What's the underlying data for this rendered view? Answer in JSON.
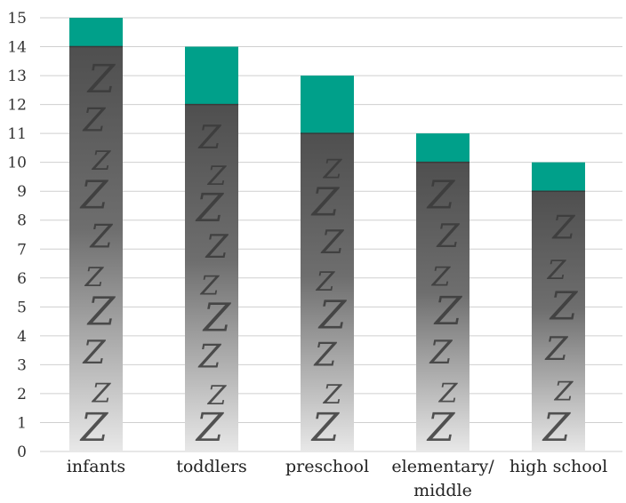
{
  "chart_data": {
    "type": "bar",
    "stacked": true,
    "categories": [
      "infants",
      "toddlers",
      "preschool",
      "elementary/ middle",
      "high school"
    ],
    "category_lines": [
      [
        "infants"
      ],
      [
        "toddlers"
      ],
      [
        "preschool"
      ],
      [
        "elementary/",
        "middle"
      ],
      [
        "high school"
      ]
    ],
    "series": [
      {
        "values": [
          14,
          12,
          11,
          10,
          9
        ],
        "color": "#555555",
        "gradient_to": "#e6e6e6",
        "pattern": "Z"
      },
      {
        "values": [
          1,
          2,
          2,
          1,
          1
        ],
        "color": "#00a08a"
      }
    ],
    "ylim": [
      0,
      15
    ],
    "yticks": [
      0,
      1,
      2,
      3,
      4,
      5,
      6,
      7,
      8,
      9,
      10,
      11,
      12,
      13,
      14,
      15
    ],
    "grid": true,
    "title": "",
    "xlabel": "",
    "ylabel": ""
  }
}
